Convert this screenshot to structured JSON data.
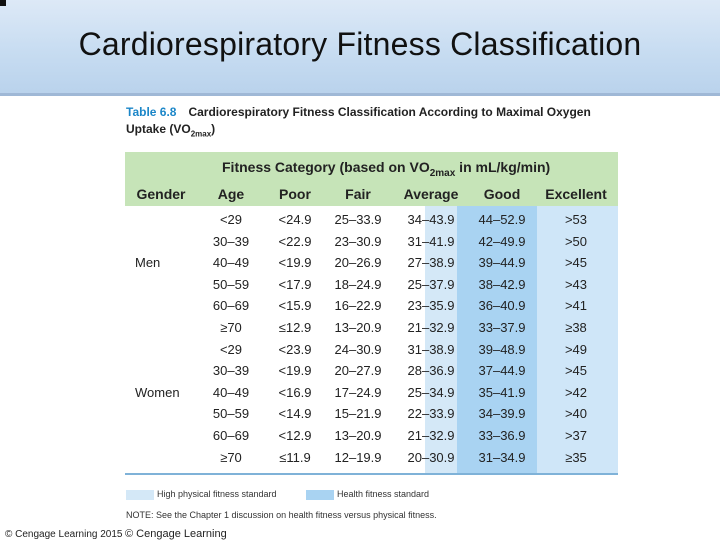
{
  "slide": {
    "title": "Cardiorespiratory Fitness Classification"
  },
  "caption": {
    "table_number": "Table 6.8",
    "text": "Cardiorespiratory Fitness Classification According to Maximal Oxygen Uptake (VO",
    "sub": "2max",
    "close": ")"
  },
  "table": {
    "category_header": "Fitness Category (based on VO",
    "category_sub": "2max",
    "category_tail": " in mL/kg/min)",
    "columns": [
      "Gender",
      "Age",
      "Poor",
      "Fair",
      "Average",
      "Good",
      "Excellent"
    ],
    "groups": [
      {
        "gender": "Men",
        "rows": [
          [
            "<29",
            "<24.9",
            "25–33.9",
            "34–43.9",
            "44–52.9",
            ">53"
          ],
          [
            "30–39",
            "<22.9",
            "23–30.9",
            "31–41.9",
            "42–49.9",
            ">50"
          ],
          [
            "40–49",
            "<19.9",
            "20–26.9",
            "27–38.9",
            "39–44.9",
            ">45"
          ],
          [
            "50–59",
            "<17.9",
            "18–24.9",
            "25–37.9",
            "38–42.9",
            ">43"
          ],
          [
            "60–69",
            "<15.9",
            "16–22.9",
            "23–35.9",
            "36–40.9",
            ">41"
          ],
          [
            "≥70",
            "≤12.9",
            "13–20.9",
            "21–32.9",
            "33–37.9",
            "≥38"
          ]
        ]
      },
      {
        "gender": "Women",
        "rows": [
          [
            "<29",
            "<23.9",
            "24–30.9",
            "31–38.9",
            "39–48.9",
            ">49"
          ],
          [
            "30–39",
            "<19.9",
            "20–27.9",
            "28–36.9",
            "37–44.9",
            ">45"
          ],
          [
            "40–49",
            "<16.9",
            "17–24.9",
            "25–34.9",
            "35–41.9",
            ">42"
          ],
          [
            "50–59",
            "<14.9",
            "15–21.9",
            "22–33.9",
            "34–39.9",
            ">40"
          ],
          [
            "60–69",
            "<12.9",
            "13–20.9",
            "21–32.9",
            "33–36.9",
            ">37"
          ],
          [
            "≥70",
            "≤11.9",
            "12–19.9",
            "20–30.9",
            "31–34.9",
            "≥35"
          ]
        ]
      }
    ]
  },
  "legend": {
    "high": "High physical fitness standard",
    "health": "Health fitness standard",
    "high_color": "#d4e8f7",
    "health_color": "#a9d3f2"
  },
  "note": "NOTE: See the Chapter 1 discussion on health fitness versus physical fitness.",
  "footer": {
    "copyright": "© Cengage Learning 2015",
    "cengage": "© Cengage Learning"
  },
  "colors": {
    "header_green": "#c6e4b8",
    "title_accent": "#1b86c8"
  }
}
